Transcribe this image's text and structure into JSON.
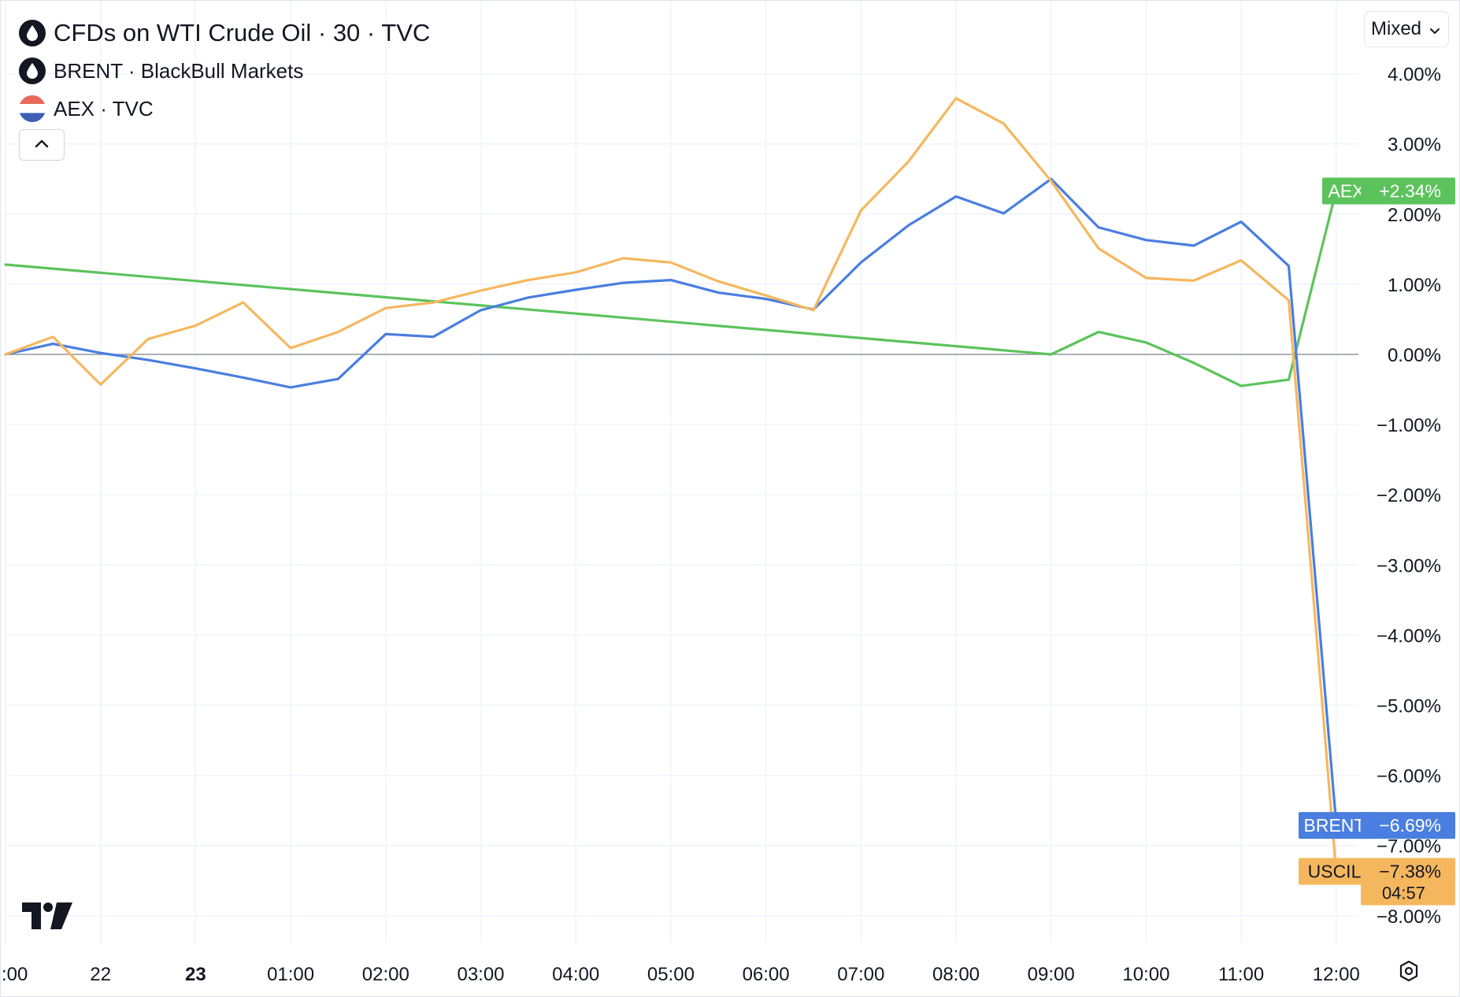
{
  "header": {
    "main_symbol": "CFDs on WTI Crude Oil · 30 · TVC",
    "compare_1": "BRENT · BlackBull Markets",
    "compare_2": "AEX · TVC",
    "scale_mode": "Mixed"
  },
  "icons": {
    "main": "oil-drop-icon",
    "compare_1": "oil-drop-icon",
    "compare_2": "netherlands-flag-icon",
    "collapse": "chevron-up-icon",
    "select": "chevron-down-icon",
    "logo": "tradingview-logo",
    "settings": "settings-icon"
  },
  "colors": {
    "uscil": "#f5b75e",
    "brent": "#4a7ee0",
    "aex": "#5cc35c",
    "zero_line": "#9598a1",
    "grid": "#f0f3fa"
  },
  "chart_data": {
    "type": "line",
    "x": [
      "21:00",
      "21:30",
      "22:00",
      "22:30",
      "23",
      "23:30",
      "01:00",
      "01:30",
      "02:00",
      "02:30",
      "03:00",
      "03:30",
      "04:00",
      "04:30",
      "05:00",
      "05:30",
      "06:00",
      "06:30",
      "07:00",
      "07:30",
      "08:00",
      "08:30",
      "09:00",
      "09:30",
      "10:00",
      "10:30",
      "11:00",
      "11:30",
      "12:00"
    ],
    "x_tick_labels": [
      ":00",
      "22",
      "23",
      "01:00",
      "02:00",
      "03:00",
      "04:00",
      "05:00",
      "06:00",
      "07:00",
      "08:00",
      "09:00",
      "10:00",
      "11:00",
      "12:00"
    ],
    "ylim": [
      -8.5,
      4.4
    ],
    "y_ticks": [
      "4.00%",
      "3.00%",
      "2.00%",
      "1.00%",
      "0.00%",
      "−1.00%",
      "−2.00%",
      "−3.00%",
      "−4.00%",
      "−5.00%",
      "−6.00%",
      "−7.00%",
      "−8.00%"
    ],
    "y_tick_values": [
      4,
      3,
      2,
      1,
      0,
      -1,
      -2,
      -3,
      -4,
      -5,
      -6,
      -7,
      -8
    ],
    "grid": true,
    "series": [
      {
        "name": "USCIL",
        "values": [
          0.0,
          0.25,
          -0.43,
          0.22,
          0.41,
          0.74,
          0.09,
          0.32,
          0.66,
          0.74,
          0.91,
          1.06,
          1.17,
          1.37,
          1.31,
          1.04,
          0.84,
          0.63,
          2.05,
          2.75,
          3.65,
          3.29,
          2.47,
          1.51,
          1.09,
          1.05,
          1.34,
          0.77,
          -7.38
        ],
        "last_label": "−7.38%",
        "countdown": "04:57"
      },
      {
        "name": "BRENT",
        "values": [
          0.0,
          0.15,
          0.02,
          -0.08,
          -0.2,
          -0.33,
          -0.47,
          -0.35,
          0.29,
          0.25,
          0.63,
          0.81,
          0.92,
          1.02,
          1.06,
          0.88,
          0.79,
          0.64,
          1.31,
          1.84,
          2.25,
          2.01,
          2.5,
          1.81,
          1.63,
          1.55,
          1.89,
          1.26,
          -6.69
        ],
        "last_label": "−6.69%"
      },
      {
        "name": "AEX",
        "points": [
          [
            0,
            1.28
          ],
          [
            22,
            0.0
          ],
          [
            23,
            0.32
          ],
          [
            24,
            0.17
          ],
          [
            25,
            -0.12
          ],
          [
            26,
            -0.45
          ],
          [
            27,
            -0.36
          ],
          [
            28,
            2.34
          ]
        ],
        "last_label": "+2.34%"
      }
    ]
  }
}
